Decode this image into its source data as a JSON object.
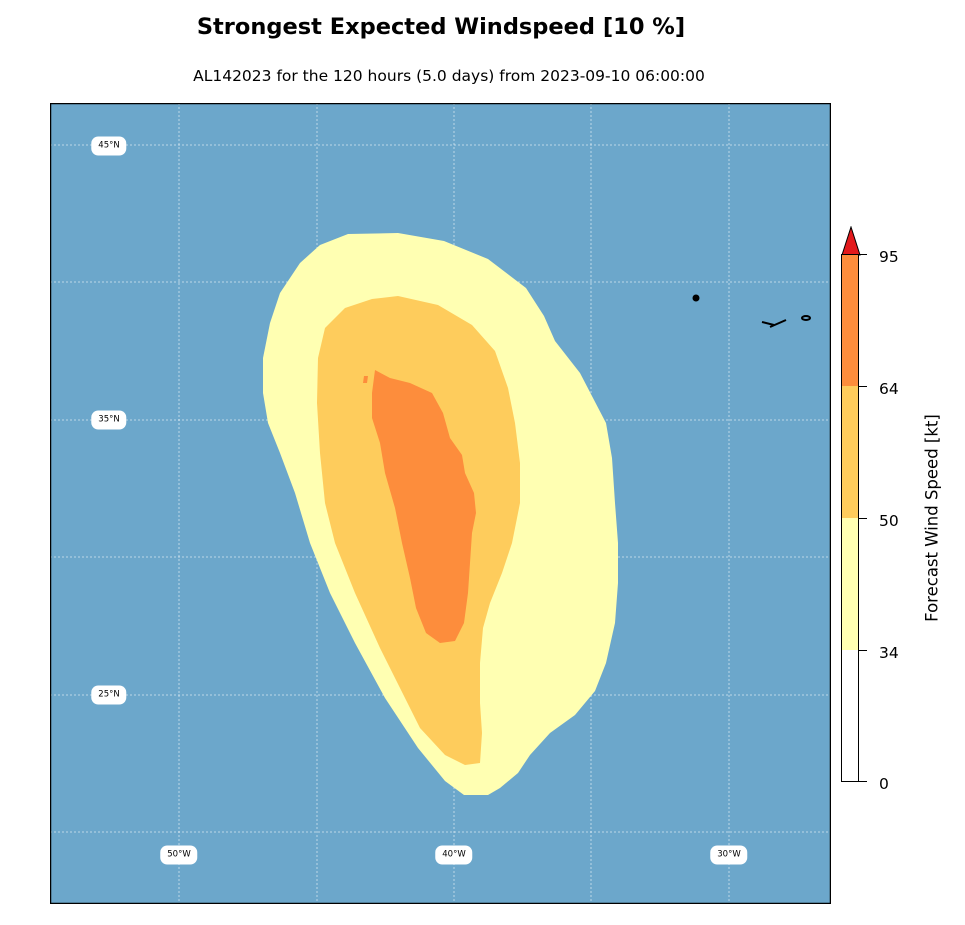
{
  "title": "Strongest Expected Windspeed [10 %]",
  "subtitle": "AL142023 for the 120 hours (5.0 days) from 2023-09-10 06:00:00",
  "map": {
    "ocean_color": "#6ca7cb",
    "grid_color": "#ffffff",
    "lat_labels": [
      "45°N",
      "35°N",
      "25°N"
    ],
    "lon_labels": [
      "50°W",
      "40°W",
      "30°W"
    ]
  },
  "colorbar": {
    "label": "Forecast Wind Speed [kt]",
    "ticks": [
      "0",
      "34",
      "50",
      "64",
      "95"
    ],
    "bands": [
      {
        "from": 0,
        "to": 34,
        "color": "#ffffff"
      },
      {
        "from": 34,
        "to": 50,
        "color": "#ffffb2"
      },
      {
        "from": 50,
        "to": 64,
        "color": "#fecc5c"
      },
      {
        "from": 64,
        "to": 95,
        "color": "#fd8d3c"
      }
    ],
    "extend_color": "#e31a1c"
  }
}
